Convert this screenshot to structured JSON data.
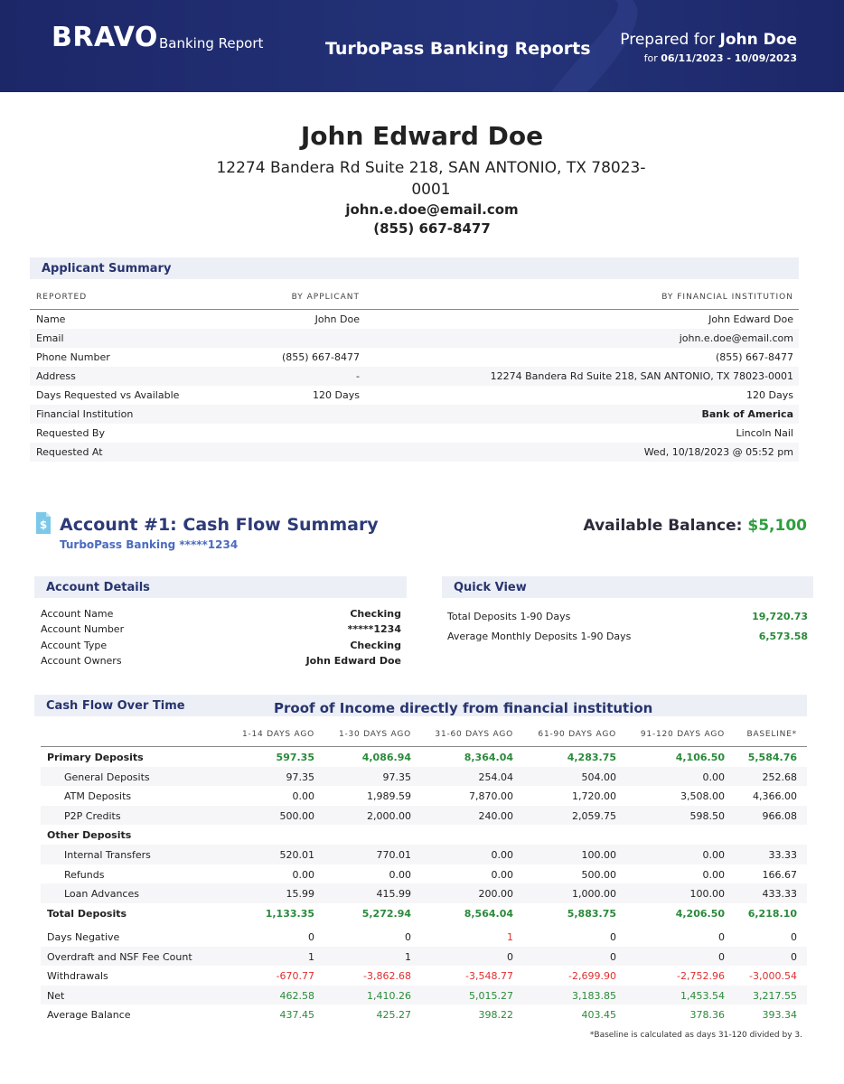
{
  "header": {
    "brand": "BRAVO",
    "brand_sub": "Banking Report",
    "center_title": "TurboPass Banking Reports",
    "prepared_label": "Prepared for",
    "prepared_name": "John Doe",
    "period_label": "for",
    "period": "06/11/2023 - 10/09/2023"
  },
  "applicant": {
    "name": "John Edward Doe",
    "address": "12274 Bandera Rd Suite 218, SAN ANTONIO, TX 78023-0001",
    "email": "john.e.doe@email.com",
    "phone": "(855) 667-8477"
  },
  "summary": {
    "title": "Applicant Summary",
    "columns": [
      "REPORTED",
      "BY APPLICANT",
      "BY FINANCIAL INSTITUTION"
    ],
    "rows": [
      [
        "Name",
        "John Doe",
        "John Edward Doe"
      ],
      [
        "Email",
        null,
        "john.e.doe@email.com"
      ],
      [
        "Phone Number",
        "(855) 667-8477",
        "(855) 667-8477"
      ],
      [
        "Address",
        "-",
        "12274 Bandera Rd Suite 218, SAN ANTONIO, TX 78023-0001"
      ],
      [
        "Days Requested vs Available",
        "120 Days",
        "120 Days"
      ],
      [
        "Financial Institution",
        null,
        "Bank of America"
      ],
      [
        "Requested By",
        null,
        "Lincoln Nail"
      ],
      [
        "Requested At",
        null,
        "Wed, 10/18/2023 @ 05:52 pm"
      ]
    ]
  },
  "account": {
    "title": "Account #1: Cash Flow Summary",
    "subtitle": "TurboPass Banking *****1234",
    "balance_label": "Available Balance:",
    "balance": "$5,100"
  },
  "details": {
    "title": "Account Details",
    "rows": [
      [
        "Account Name",
        "Checking"
      ],
      [
        "Account Number",
        "*****1234"
      ],
      [
        "Account Type",
        "Checking"
      ],
      [
        "Account Owners",
        "John Edward Doe"
      ]
    ]
  },
  "quick_view": {
    "title": "Quick View",
    "rows": [
      [
        "Total Deposits 1-90 Days",
        "19,720.73"
      ],
      [
        "Average Monthly Deposits 1-90 Days",
        "6,573.58"
      ]
    ]
  },
  "cash_flow": {
    "title": "Cash Flow Over Time",
    "banner": "Proof of Income directly from financial institution",
    "columns": [
      "1-14 DAYS AGO",
      "1-30 DAYS AGO",
      "31-60 DAYS AGO",
      "61-90 DAYS AGO",
      "91-120 DAYS AGO",
      "BASELINE*"
    ],
    "deposit_rows": [
      {
        "label": "Primary Deposits",
        "kind": "group",
        "color": "#2a8a3a",
        "values": [
          "597.35",
          "4,086.94",
          "8,364.04",
          "4,283.75",
          "4,106.50",
          "5,584.76"
        ]
      },
      {
        "label": "General Deposits",
        "kind": "sub",
        "values": [
          "97.35",
          "97.35",
          "254.04",
          "504.00",
          "0.00",
          "252.68"
        ]
      },
      {
        "label": "ATM Deposits",
        "kind": "sub",
        "values": [
          "0.00",
          "1,989.59",
          "7,870.00",
          "1,720.00",
          "3,508.00",
          "4,366.00"
        ]
      },
      {
        "label": "P2P Credits",
        "kind": "sub",
        "values": [
          "500.00",
          "2,000.00",
          "240.00",
          "2,059.75",
          "598.50",
          "966.08"
        ]
      },
      {
        "label": "Other Deposits",
        "kind": "group"
      },
      {
        "label": "Internal Transfers",
        "kind": "sub",
        "values": [
          "520.01",
          "770.01",
          "0.00",
          "100.00",
          "0.00",
          "33.33"
        ]
      },
      {
        "label": "Refunds",
        "kind": "sub",
        "values": [
          "0.00",
          "0.00",
          "0.00",
          "500.00",
          "0.00",
          "166.67"
        ]
      },
      {
        "label": "Loan Advances",
        "kind": "sub",
        "values": [
          "15.99",
          "415.99",
          "200.00",
          "1,000.00",
          "100.00",
          "433.33"
        ]
      },
      {
        "label": "Total Deposits",
        "kind": "group",
        "color": "#2a8a3a",
        "values": [
          "1,133.35",
          "5,272.94",
          "8,564.04",
          "5,883.75",
          "4,206.50",
          "6,218.10"
        ]
      }
    ],
    "metric_rows": [
      {
        "label": "Days Negative",
        "kind": "metric",
        "values": [
          "0",
          "0",
          "1",
          "0",
          "0",
          "0"
        ],
        "cell_colors": [
          null,
          null,
          "#e03030",
          null,
          null,
          null
        ]
      },
      {
        "label": "Overdraft and NSF Fee Count",
        "kind": "metric",
        "values": [
          "1",
          "1",
          "0",
          "0",
          "0",
          "0"
        ]
      },
      {
        "label": "Withdrawals",
        "kind": "metric",
        "color": "#e03030",
        "values": [
          "-670.77",
          "-3,862.68",
          "-3,548.77",
          "-2,699.90",
          "-2,752.96",
          "-3,000.54"
        ]
      },
      {
        "label": "Net",
        "kind": "metric",
        "color": "#2a8a3a",
        "values": [
          "462.58",
          "1,410.26",
          "5,015.27",
          "3,183.85",
          "1,453.54",
          "3,217.55"
        ]
      },
      {
        "label": "Average Balance",
        "kind": "metric",
        "color": "#2a8a3a",
        "values": [
          "437.45",
          "425.27",
          "398.22",
          "403.45",
          "378.36",
          "393.34"
        ]
      }
    ],
    "footnote": "*Baseline is calculated as days 31-120 divided by 3."
  }
}
